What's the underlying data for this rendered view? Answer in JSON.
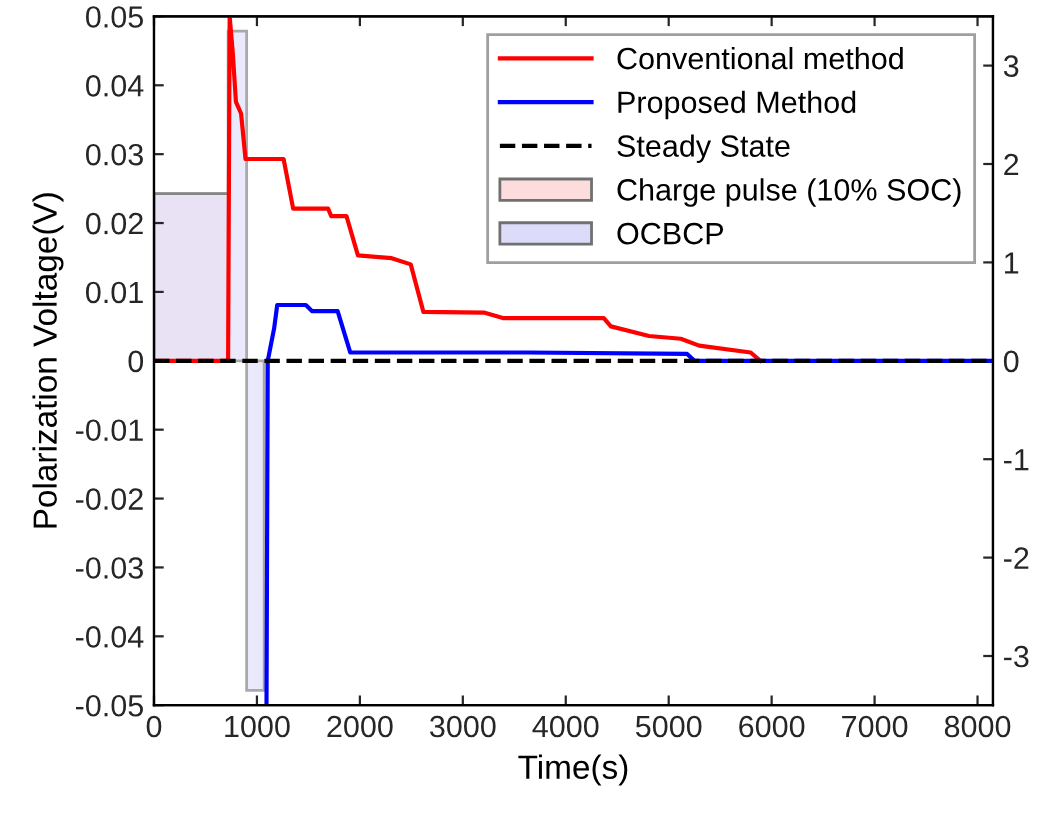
{
  "chart_data": {
    "type": "line",
    "xlabel": "Time(s)",
    "ylabel": "Polarization Voltage(V)",
    "xlim": [
      0,
      8150
    ],
    "xticks": [
      0,
      1000,
      2000,
      3000,
      4000,
      5000,
      6000,
      7000,
      8000
    ],
    "ylim": [
      -0.05,
      0.05
    ],
    "yticks": [
      -0.05,
      -0.04,
      -0.03,
      -0.02,
      -0.01,
      0,
      0.01,
      0.02,
      0.03,
      0.04,
      0.05
    ],
    "y2lim": [
      -3.5,
      3.5
    ],
    "y2ticks": [
      -3,
      -2,
      -1,
      0,
      1,
      2,
      3
    ],
    "grid": false,
    "legend": "top right",
    "series": [
      {
        "name": "Conventional method",
        "color": "#ff0000",
        "line_style": "solid",
        "x": [
          0,
          720,
          735,
          765,
          796,
          846,
          889,
          1259,
          1352,
          1691,
          1722,
          1870,
          1981,
          2309,
          2494,
          2617,
          3204,
          3389,
          4370,
          4438,
          4809,
          5117,
          5296,
          5796,
          5889
        ],
        "values": [
          0,
          0,
          0.05,
          0.0448,
          0.0376,
          0.0359,
          0.0293,
          0.0293,
          0.0221,
          0.0221,
          0.021,
          0.021,
          0.0153,
          0.0149,
          0.014,
          0.0071,
          0.007,
          0.0062,
          0.0062,
          0.005,
          0.0036,
          0.0032,
          0.0022,
          0.0012,
          0
        ]
      },
      {
        "name": "Proposed Method",
        "color": "#0000ff",
        "line_style": "solid",
        "x": [
          1093,
          1105,
          1167,
          1197,
          1475,
          1537,
          1784,
          1907,
          3630,
          5179,
          5250,
          8150
        ],
        "values": [
          -0.05,
          0,
          0.0047,
          0.0081,
          0.0081,
          0.0072,
          0.0072,
          0.0012,
          0.0012,
          0.001,
          0,
          0
        ]
      },
      {
        "name": "Steady State",
        "color": "#000000",
        "line_style": "dashed",
        "x": [
          0,
          8150
        ],
        "values": [
          0,
          0
        ]
      },
      {
        "name": "Charge pulse (10% SOC)",
        "color": "#fcdcdc",
        "type": "area",
        "axis": "y2",
        "x": [
          0,
          720
        ],
        "values": [
          1.7,
          1.7
        ]
      },
      {
        "name": "OCBCP",
        "color": "#dcdcfa",
        "type": "area",
        "axis": "y2",
        "x": [
          0,
          720,
          900,
          1070
        ],
        "values": [
          1.7,
          3.35,
          -3.35,
          -3.35
        ]
      }
    ]
  }
}
